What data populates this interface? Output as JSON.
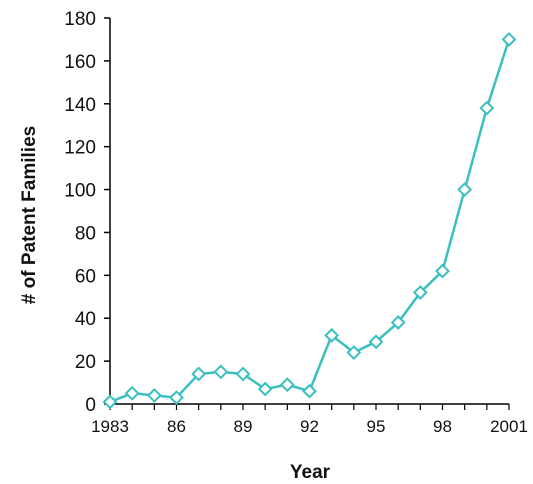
{
  "chart_data": {
    "type": "line",
    "title": "",
    "xlabel": "Year",
    "ylabel": "# of Patent Families",
    "ylim": [
      0,
      180
    ],
    "xlim": [
      1983,
      2001
    ],
    "yticks": [
      "0",
      "20",
      "40",
      "60",
      "80",
      "100",
      "120",
      "140",
      "160",
      "180"
    ],
    "xticks": [
      {
        "value": 1983,
        "label": "1983"
      },
      {
        "value": 1986,
        "label": "86"
      },
      {
        "value": 1989,
        "label": "89"
      },
      {
        "value": 1992,
        "label": "92"
      },
      {
        "value": 1995,
        "label": "95"
      },
      {
        "value": 1998,
        "label": "98"
      },
      {
        "value": 2001,
        "label": "2001"
      }
    ],
    "grid": false,
    "legend": "none",
    "line_color": "#3bbfbf",
    "marker": "open-diamond",
    "series": [
      {
        "x": [
          1983,
          1984,
          1985,
          1986,
          1987,
          1988,
          1989,
          1990,
          1991,
          1992,
          1993,
          1994,
          1995,
          1996,
          1997,
          1998,
          1999,
          2000,
          2001
        ],
        "y": [
          1,
          5,
          4,
          3,
          14,
          15,
          14,
          7,
          9,
          6,
          32,
          24,
          29,
          38,
          52,
          62,
          100,
          138,
          170
        ]
      }
    ]
  }
}
